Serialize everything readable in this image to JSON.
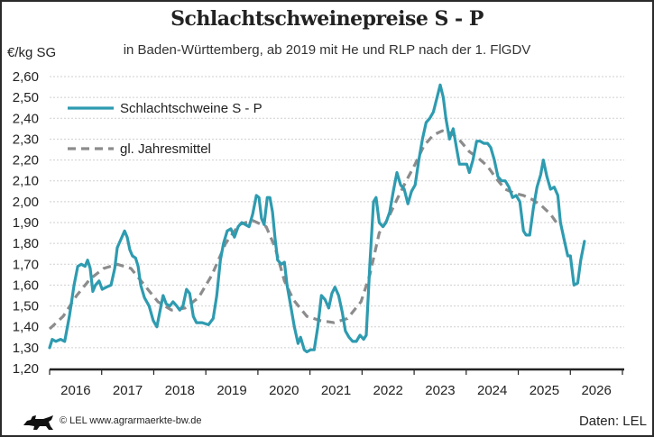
{
  "chart_data": {
    "type": "line",
    "title": "Schlachtschweinepreise S - P",
    "subtitle": "in Baden-Württemberg,  ab 2019 mit He und RLP nach der 1. FlGDV",
    "ylabel": "€/kg SG",
    "xlabel": "",
    "xlim": [
      2016,
      2027
    ],
    "ylim": [
      1.2,
      2.6
    ],
    "y_ticks": [
      "1,20",
      "1,30",
      "1,40",
      "1,50",
      "1,60",
      "1,70",
      "1,80",
      "1,90",
      "2,00",
      "2,10",
      "2,20",
      "2,30",
      "2,40",
      "2,50",
      "2,60"
    ],
    "x_ticks": [
      "2016",
      "2017",
      "2018",
      "2019",
      "2020",
      "2021",
      "2022",
      "2023",
      "2024",
      "2025",
      "2026"
    ],
    "grid": "horizontal dashed",
    "legend_position": "top-left",
    "series": [
      {
        "name": "Schlachtschweine S - P",
        "color": "#2e9bb0",
        "style": "solid",
        "points": [
          [
            2016.0,
            1.3
          ],
          [
            2016.05,
            1.34
          ],
          [
            2016.12,
            1.33
          ],
          [
            2016.21,
            1.34
          ],
          [
            2016.29,
            1.33
          ],
          [
            2016.38,
            1.45
          ],
          [
            2016.47,
            1.6
          ],
          [
            2016.54,
            1.69
          ],
          [
            2016.61,
            1.7
          ],
          [
            2016.68,
            1.69
          ],
          [
            2016.73,
            1.72
          ],
          [
            2016.78,
            1.68
          ],
          [
            2016.83,
            1.57
          ],
          [
            2016.88,
            1.6
          ],
          [
            2016.95,
            1.62
          ],
          [
            2017.01,
            1.58
          ],
          [
            2017.09,
            1.59
          ],
          [
            2017.18,
            1.6
          ],
          [
            2017.25,
            1.68
          ],
          [
            2017.3,
            1.78
          ],
          [
            2017.37,
            1.82
          ],
          [
            2017.44,
            1.86
          ],
          [
            2017.49,
            1.83
          ],
          [
            2017.54,
            1.77
          ],
          [
            2017.59,
            1.74
          ],
          [
            2017.65,
            1.73
          ],
          [
            2017.7,
            1.69
          ],
          [
            2017.75,
            1.6
          ],
          [
            2017.82,
            1.54
          ],
          [
            2017.91,
            1.5
          ],
          [
            2017.99,
            1.43
          ],
          [
            2018.06,
            1.4
          ],
          [
            2018.13,
            1.49
          ],
          [
            2018.18,
            1.55
          ],
          [
            2018.24,
            1.51
          ],
          [
            2018.31,
            1.5
          ],
          [
            2018.37,
            1.52
          ],
          [
            2018.44,
            1.5
          ],
          [
            2018.5,
            1.48
          ],
          [
            2018.56,
            1.5
          ],
          [
            2018.63,
            1.58
          ],
          [
            2018.69,
            1.56
          ],
          [
            2018.76,
            1.45
          ],
          [
            2018.82,
            1.42
          ],
          [
            2018.93,
            1.42
          ],
          [
            2019.05,
            1.41
          ],
          [
            2019.14,
            1.44
          ],
          [
            2019.21,
            1.55
          ],
          [
            2019.28,
            1.72
          ],
          [
            2019.34,
            1.8
          ],
          [
            2019.41,
            1.86
          ],
          [
            2019.48,
            1.87
          ],
          [
            2019.55,
            1.83
          ],
          [
            2019.62,
            1.88
          ],
          [
            2019.69,
            1.9
          ],
          [
            2019.76,
            1.89
          ],
          [
            2019.83,
            1.88
          ],
          [
            2019.9,
            1.94
          ],
          [
            2019.97,
            2.03
          ],
          [
            2020.02,
            2.02
          ],
          [
            2020.07,
            1.92
          ],
          [
            2020.12,
            1.89
          ],
          [
            2020.18,
            2.02
          ],
          [
            2020.23,
            2.02
          ],
          [
            2020.28,
            1.95
          ],
          [
            2020.33,
            1.82
          ],
          [
            2020.38,
            1.72
          ],
          [
            2020.45,
            1.7
          ],
          [
            2020.51,
            1.71
          ],
          [
            2020.56,
            1.6
          ],
          [
            2020.63,
            1.5
          ],
          [
            2020.7,
            1.4
          ],
          [
            2020.77,
            1.32
          ],
          [
            2020.82,
            1.35
          ],
          [
            2020.89,
            1.29
          ],
          [
            2020.94,
            1.28
          ],
          [
            2021.01,
            1.29
          ],
          [
            2021.08,
            1.29
          ],
          [
            2021.15,
            1.4
          ],
          [
            2021.22,
            1.55
          ],
          [
            2021.29,
            1.53
          ],
          [
            2021.36,
            1.49
          ],
          [
            2021.42,
            1.56
          ],
          [
            2021.48,
            1.59
          ],
          [
            2021.55,
            1.55
          ],
          [
            2021.62,
            1.47
          ],
          [
            2021.68,
            1.38
          ],
          [
            2021.75,
            1.35
          ],
          [
            2021.82,
            1.33
          ],
          [
            2021.89,
            1.33
          ],
          [
            2021.96,
            1.36
          ],
          [
            2022.03,
            1.34
          ],
          [
            2022.08,
            1.36
          ],
          [
            2022.15,
            1.7
          ],
          [
            2022.22,
            2.0
          ],
          [
            2022.27,
            2.02
          ],
          [
            2022.33,
            1.9
          ],
          [
            2022.4,
            1.88
          ],
          [
            2022.46,
            1.9
          ],
          [
            2022.53,
            1.95
          ],
          [
            2022.6,
            2.05
          ],
          [
            2022.67,
            2.14
          ],
          [
            2022.74,
            2.08
          ],
          [
            2022.81,
            2.06
          ],
          [
            2022.88,
            1.99
          ],
          [
            2022.95,
            2.05
          ],
          [
            2023.02,
            2.08
          ],
          [
            2023.09,
            2.2
          ],
          [
            2023.16,
            2.3
          ],
          [
            2023.23,
            2.38
          ],
          [
            2023.3,
            2.4
          ],
          [
            2023.37,
            2.43
          ],
          [
            2023.44,
            2.5
          ],
          [
            2023.5,
            2.56
          ],
          [
            2023.56,
            2.5
          ],
          [
            2023.61,
            2.4
          ],
          [
            2023.68,
            2.3
          ],
          [
            2023.75,
            2.35
          ],
          [
            2023.82,
            2.25
          ],
          [
            2023.87,
            2.18
          ],
          [
            2023.94,
            2.18
          ],
          [
            2024.01,
            2.18
          ],
          [
            2024.06,
            2.14
          ],
          [
            2024.13,
            2.2
          ],
          [
            2024.2,
            2.29
          ],
          [
            2024.27,
            2.29
          ],
          [
            2024.34,
            2.28
          ],
          [
            2024.41,
            2.28
          ],
          [
            2024.47,
            2.26
          ],
          [
            2024.54,
            2.2
          ],
          [
            2024.61,
            2.12
          ],
          [
            2024.68,
            2.1
          ],
          [
            2024.75,
            2.1
          ],
          [
            2024.82,
            2.07
          ],
          [
            2024.89,
            2.02
          ],
          [
            2024.96,
            2.03
          ],
          [
            2025.03,
            2.0
          ],
          [
            2025.1,
            1.86
          ],
          [
            2025.15,
            1.84
          ],
          [
            2025.22,
            1.84
          ],
          [
            2025.29,
            1.97
          ],
          [
            2025.36,
            2.07
          ],
          [
            2025.43,
            2.13
          ],
          [
            2025.48,
            2.2
          ],
          [
            2025.55,
            2.12
          ],
          [
            2025.62,
            2.06
          ],
          [
            2025.69,
            2.07
          ],
          [
            2025.76,
            2.03
          ],
          [
            2025.81,
            1.9
          ],
          [
            2025.88,
            1.82
          ],
          [
            2025.95,
            1.74
          ],
          [
            2026.0,
            1.74
          ],
          [
            2026.07,
            1.6
          ],
          [
            2026.14,
            1.61
          ],
          [
            2026.2,
            1.72
          ],
          [
            2026.27,
            1.81
          ]
        ]
      },
      {
        "name": "gl. Jahresmittel",
        "color": "#8c8c8c",
        "style": "dashed",
        "points": [
          [
            2016.0,
            1.39
          ],
          [
            2016.26,
            1.45
          ],
          [
            2016.52,
            1.55
          ],
          [
            2016.78,
            1.63
          ],
          [
            2017.04,
            1.68
          ],
          [
            2017.3,
            1.7
          ],
          [
            2017.56,
            1.68
          ],
          [
            2017.82,
            1.6
          ],
          [
            2018.08,
            1.52
          ],
          [
            2018.34,
            1.48
          ],
          [
            2018.6,
            1.49
          ],
          [
            2018.86,
            1.54
          ],
          [
            2019.12,
            1.65
          ],
          [
            2019.38,
            1.8
          ],
          [
            2019.64,
            1.89
          ],
          [
            2019.9,
            1.91
          ],
          [
            2020.16,
            1.88
          ],
          [
            2020.33,
            1.78
          ],
          [
            2020.51,
            1.62
          ],
          [
            2020.68,
            1.53
          ],
          [
            2020.94,
            1.45
          ],
          [
            2021.2,
            1.43
          ],
          [
            2021.46,
            1.42
          ],
          [
            2021.72,
            1.44
          ],
          [
            2021.98,
            1.52
          ],
          [
            2022.15,
            1.65
          ],
          [
            2022.33,
            1.85
          ],
          [
            2022.5,
            1.92
          ],
          [
            2022.67,
            2.01
          ],
          [
            2022.85,
            2.1
          ],
          [
            2023.02,
            2.18
          ],
          [
            2023.19,
            2.27
          ],
          [
            2023.37,
            2.32
          ],
          [
            2023.54,
            2.34
          ],
          [
            2023.71,
            2.33
          ],
          [
            2023.89,
            2.29
          ],
          [
            2024.06,
            2.24
          ],
          [
            2024.23,
            2.21
          ],
          [
            2024.41,
            2.17
          ],
          [
            2024.58,
            2.11
          ],
          [
            2024.75,
            2.06
          ],
          [
            2024.93,
            2.04
          ],
          [
            2025.1,
            2.03
          ],
          [
            2025.27,
            2.01
          ],
          [
            2025.45,
            1.98
          ],
          [
            2025.62,
            1.94
          ],
          [
            2025.79,
            1.88
          ]
        ]
      }
    ]
  },
  "footer": {
    "copyright": "© LEL www.agrarmaerkte-bw.de",
    "source": "Daten: LEL",
    "logo": "baden-wuerttemberg-lion-logo"
  }
}
